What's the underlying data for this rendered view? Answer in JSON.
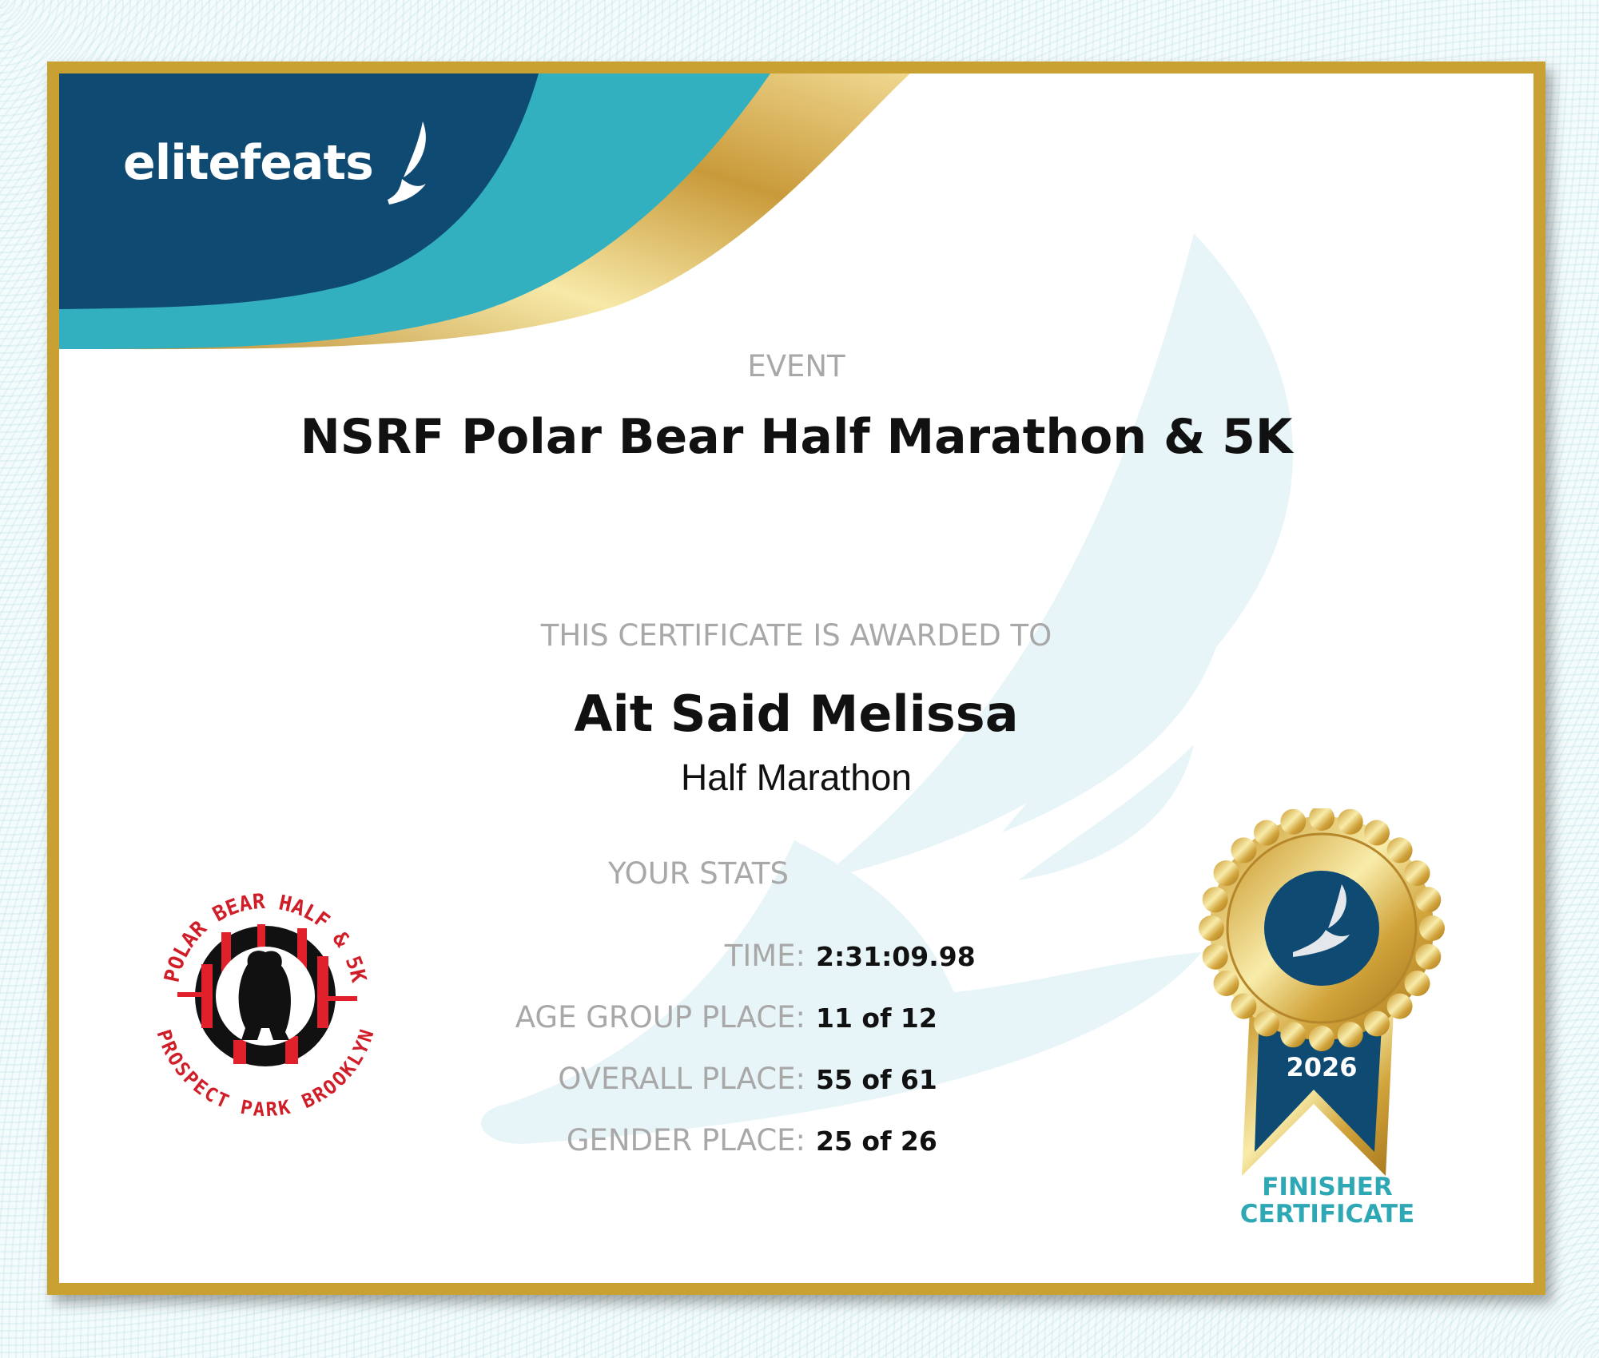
{
  "brand": {
    "name": "elitefeats",
    "icon": "winged-foot-icon"
  },
  "colors": {
    "navy": "#0f4a73",
    "teal": "#33b0bf",
    "gold": "#c9a032",
    "label_gray": "#a8a8a8",
    "finisher_teal": "#2fa8b5"
  },
  "event": {
    "label": "EVENT",
    "title": "NSRF Polar Bear Half Marathon & 5K"
  },
  "award": {
    "label": "THIS CERTIFICATE IS AWARDED TO",
    "name": "Ait Said Melissa",
    "race": "Half Marathon"
  },
  "stats": {
    "title": "YOUR STATS",
    "rows": [
      {
        "label": "TIME:",
        "value": "2:31:09.98"
      },
      {
        "label": "AGE GROUP PLACE:",
        "value": "11 of 12"
      },
      {
        "label": "OVERALL PLACE:",
        "value": "55 of 61"
      },
      {
        "label": "GENDER PLACE:",
        "value": "25 of 26"
      }
    ]
  },
  "race_logo": {
    "top_text": "POLAR BEAR HALF & 5K",
    "bottom_text": "PROSPECT PARK BROOKLYN"
  },
  "medal": {
    "year": "2026",
    "line1": "FINISHER",
    "line2": "CERTIFICATE"
  }
}
